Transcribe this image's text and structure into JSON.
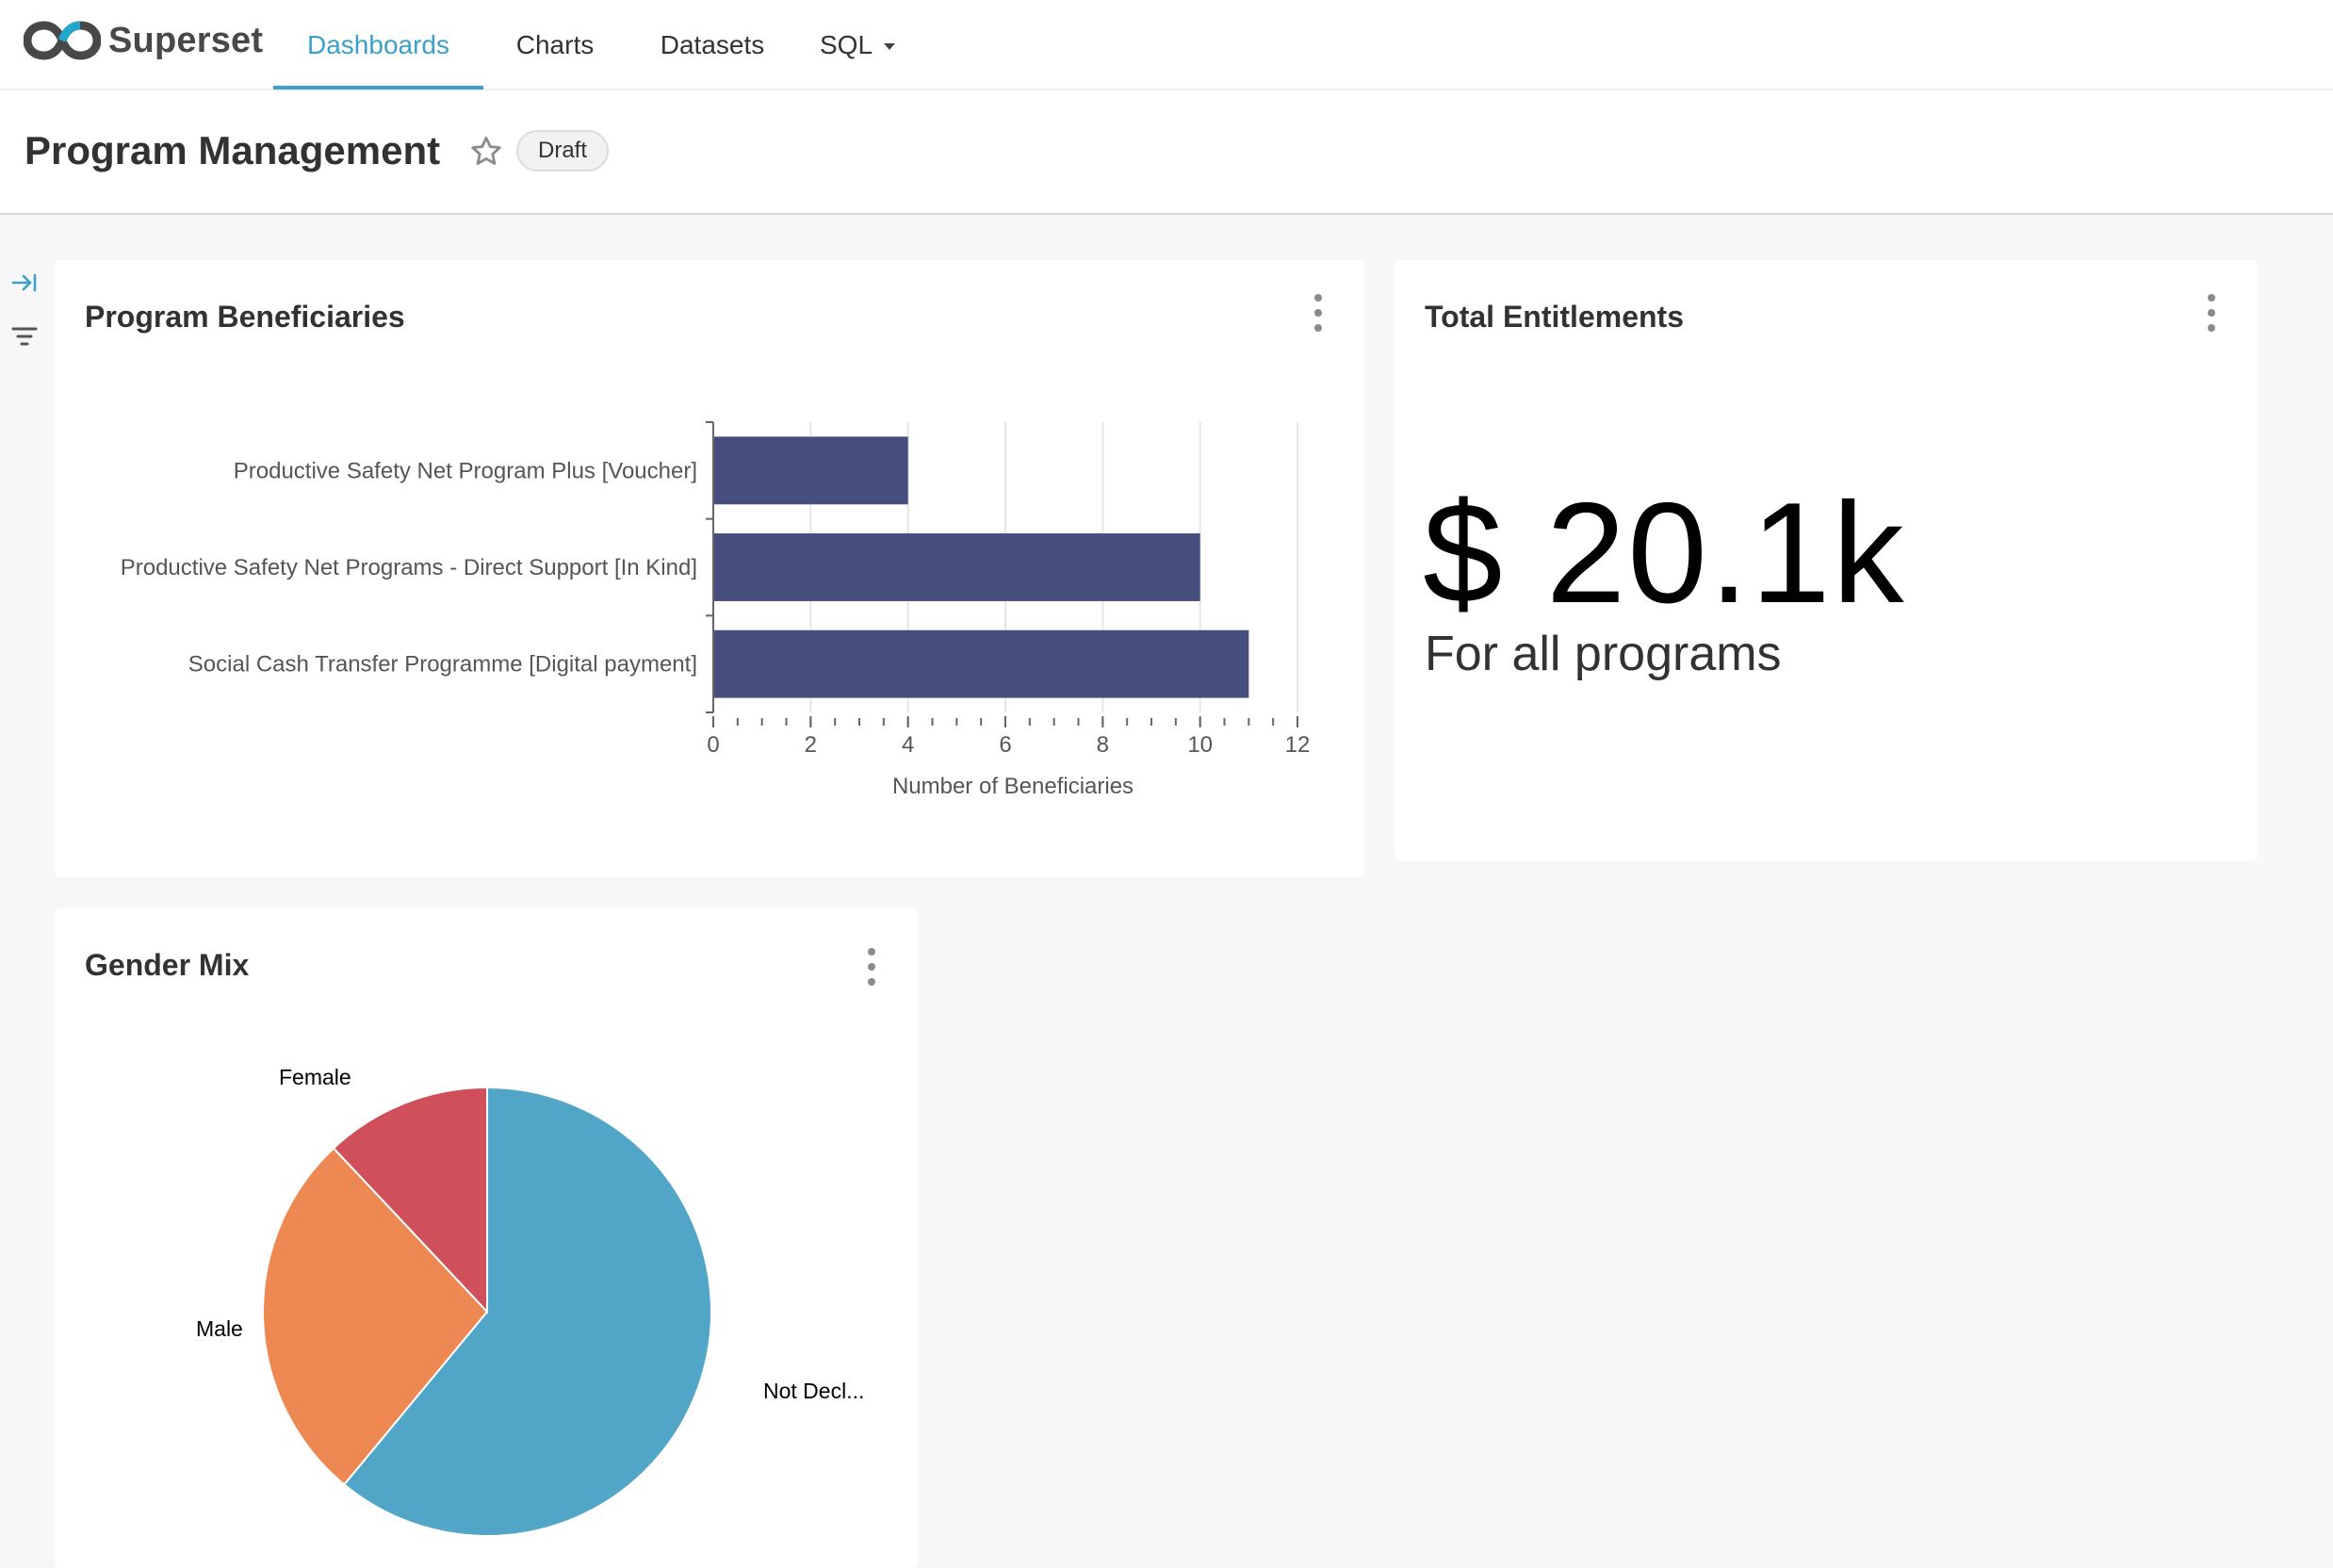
{
  "nav": {
    "brand": "Superset",
    "items": [
      {
        "label": "Dashboards",
        "active": true
      },
      {
        "label": "Charts",
        "active": false
      },
      {
        "label": "Datasets",
        "active": false
      },
      {
        "label": "SQL",
        "active": false,
        "has_dropdown": true
      }
    ]
  },
  "header": {
    "title": "Program Management",
    "badge": "Draft",
    "star_icon": "star-outline-icon"
  },
  "rail": {
    "expand_icon": "expand-right-icon",
    "filter_icon": "filter-icon"
  },
  "colors": {
    "accent": "#3ba0c9",
    "bar": "#454e7c",
    "pie_not_declared": "#51a5c7",
    "pie_male": "#ee8852",
    "pie_female": "#cf4f5b"
  },
  "cards": {
    "beneficiaries": {
      "title": "Program Beneficiaries",
      "menu_icon": "kebab-menu-icon"
    },
    "entitlements": {
      "title": "Total Entitlements",
      "value": "$ 20.1k",
      "subheader": "For all programs",
      "menu_icon": "kebab-menu-icon"
    },
    "gender": {
      "title": "Gender Mix",
      "menu_icon": "kebab-menu-icon"
    }
  },
  "chart_data": [
    {
      "type": "bar",
      "orientation": "horizontal",
      "title": "Program Beneficiaries",
      "categories": [
        "Productive Safety Net Program Plus [Voucher]",
        "Productive Safety Net Programs - Direct Support [In Kind]",
        "Social Cash Transfer Programme [Digital payment]"
      ],
      "values": [
        4,
        10,
        11
      ],
      "xlabel": "Number of Beneficiaries",
      "ylabel": "",
      "xlim": [
        0,
        12
      ],
      "xticks": [
        0,
        2,
        4,
        6,
        8,
        10,
        12
      ],
      "grid": true
    },
    {
      "type": "pie",
      "title": "Gender Mix",
      "labels": [
        "Not Decl...",
        "Male",
        "Female"
      ],
      "values": [
        61,
        27,
        12
      ]
    }
  ]
}
